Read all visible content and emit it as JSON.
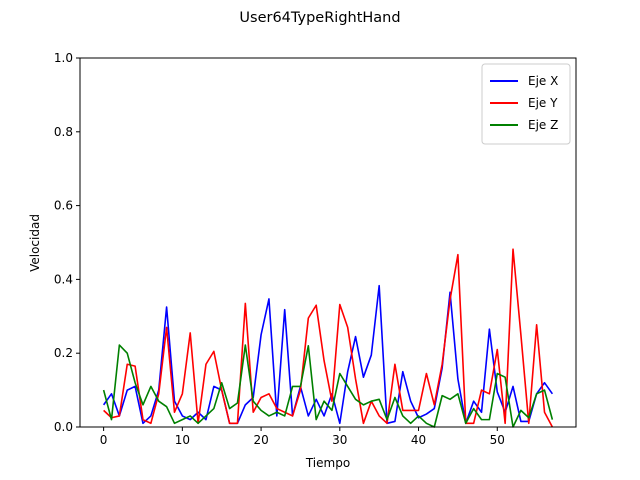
{
  "chart_data": {
    "type": "line",
    "title": "User64TypeRightHand",
    "xlabel": "Tiempo",
    "ylabel": "Velocidad",
    "xlim": [
      -3,
      60
    ],
    "ylim": [
      0,
      1.0
    ],
    "xticks": [
      0,
      10,
      20,
      30,
      40,
      50
    ],
    "yticks": [
      0.0,
      0.2,
      0.4,
      0.6,
      0.8,
      1.0
    ],
    "ytick_labels": [
      "0.0",
      "0.2",
      "0.4",
      "0.6",
      "0.8",
      "1.0"
    ],
    "grid": false,
    "legend_position": "top-right",
    "x": [
      0,
      1,
      2,
      3,
      4,
      5,
      6,
      7,
      8,
      9,
      10,
      11,
      12,
      13,
      14,
      15,
      16,
      17,
      18,
      19,
      20,
      21,
      22,
      23,
      24,
      25,
      26,
      27,
      28,
      29,
      30,
      31,
      32,
      33,
      34,
      35,
      36,
      37,
      38,
      39,
      40,
      41,
      42,
      43,
      44,
      45,
      46,
      47,
      48,
      49,
      50,
      51,
      52,
      53,
      54,
      55,
      56,
      57
    ],
    "series": [
      {
        "name": "Eje X",
        "color": "#0000ff",
        "values": [
          0.06,
          0.09,
          0.03,
          0.1,
          0.11,
          0.01,
          0.03,
          0.1,
          0.325,
          0.07,
          0.03,
          0.02,
          0.04,
          0.02,
          0.11,
          0.1,
          0.01,
          0.01,
          0.06,
          0.08,
          0.25,
          0.347,
          0.03,
          0.318,
          0.03,
          0.11,
          0.03,
          0.075,
          0.03,
          0.09,
          0.01,
          0.15,
          0.245,
          0.135,
          0.195,
          0.383,
          0.01,
          0.015,
          0.15,
          0.07,
          0.025,
          0.035,
          0.05,
          0.16,
          0.365,
          0.13,
          0.01,
          0.07,
          0.04,
          0.265,
          0.095,
          0.04,
          0.11,
          0.015,
          0.015,
          0.09,
          0.12,
          0.09
        ]
      },
      {
        "name": "Eje Y",
        "color": "#ff0000",
        "values": [
          0.045,
          0.025,
          0.03,
          0.17,
          0.165,
          0.02,
          0.01,
          0.09,
          0.27,
          0.04,
          0.09,
          0.255,
          0.01,
          0.17,
          0.205,
          0.1,
          0.01,
          0.01,
          0.335,
          0.04,
          0.08,
          0.09,
          0.05,
          0.04,
          0.03,
          0.1,
          0.295,
          0.33,
          0.18,
          0.07,
          0.332,
          0.27,
          0.13,
          0.01,
          0.07,
          0.03,
          0.01,
          0.17,
          0.045,
          0.045,
          0.045,
          0.145,
          0.06,
          0.17,
          0.345,
          0.467,
          0.01,
          0.01,
          0.1,
          0.09,
          0.21,
          0.01,
          0.482,
          0.25,
          0.01,
          0.277,
          0.04,
          0.0
        ]
      },
      {
        "name": "Eje Z",
        "color": "#008000",
        "values": [
          0.1,
          0.02,
          0.222,
          0.2,
          0.12,
          0.06,
          0.11,
          0.07,
          0.055,
          0.01,
          0.02,
          0.03,
          0.01,
          0.03,
          0.05,
          0.12,
          0.05,
          0.065,
          0.222,
          0.07,
          0.045,
          0.03,
          0.04,
          0.03,
          0.11,
          0.11,
          0.22,
          0.02,
          0.07,
          0.045,
          0.145,
          0.11,
          0.075,
          0.06,
          0.07,
          0.075,
          0.02,
          0.08,
          0.03,
          0.01,
          0.03,
          0.01,
          0.0,
          0.085,
          0.075,
          0.09,
          0.01,
          0.05,
          0.02,
          0.02,
          0.145,
          0.135,
          0.0,
          0.045,
          0.025,
          0.09,
          0.1,
          0.02
        ]
      }
    ]
  }
}
